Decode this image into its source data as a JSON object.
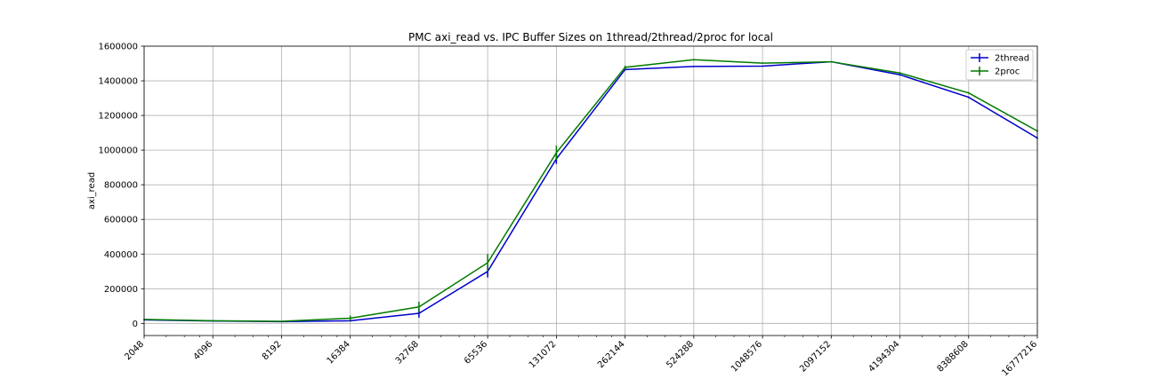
{
  "chart_data": {
    "type": "line",
    "title": "PMC axi_read vs. IPC Buffer Sizes on 1thread/2thread/2proc for local",
    "xlabel": "",
    "ylabel": "axi_read",
    "x_scale": "log2",
    "x": [
      2048,
      4096,
      8192,
      16384,
      32768,
      65536,
      131072,
      262144,
      524288,
      1048576,
      2097152,
      4194304,
      8388608,
      16777216
    ],
    "x_tick_labels": [
      "2048",
      "4096",
      "8192",
      "16384",
      "32768",
      "65536",
      "131072",
      "262144",
      "524288",
      "1048576",
      "2097152",
      "4194304",
      "8388608",
      "16777216"
    ],
    "ylim": [
      -70000,
      1600000
    ],
    "y_ticks": [
      0,
      200000,
      400000,
      600000,
      800000,
      1000000,
      1200000,
      1400000,
      1600000
    ],
    "y_tick_labels": [
      "0",
      "200000",
      "400000",
      "600000",
      "800000",
      "1000000",
      "1200000",
      "1400000",
      "1600000"
    ],
    "grid": true,
    "legend_position": "top-right",
    "series": [
      {
        "name": "2thread",
        "color": "#0000cc",
        "values": [
          20000,
          14000,
          10000,
          15000,
          58000,
          300000,
          950000,
          1465000,
          1483000,
          1485000,
          1510000,
          1435000,
          1305000,
          1070000
        ],
        "errors": [
          3000,
          2000,
          2000,
          5000,
          25000,
          35000,
          30000,
          5000,
          3000,
          3000,
          3000,
          5000,
          5000,
          5000
        ]
      },
      {
        "name": "2proc",
        "color": "#007a00",
        "values": [
          23000,
          15000,
          12000,
          30000,
          95000,
          350000,
          985000,
          1478000,
          1522000,
          1502000,
          1510000,
          1445000,
          1330000,
          1110000
        ],
        "errors": [
          3000,
          2000,
          2000,
          15000,
          30000,
          50000,
          40000,
          10000,
          3000,
          3000,
          3000,
          5000,
          5000,
          5000
        ]
      }
    ]
  }
}
